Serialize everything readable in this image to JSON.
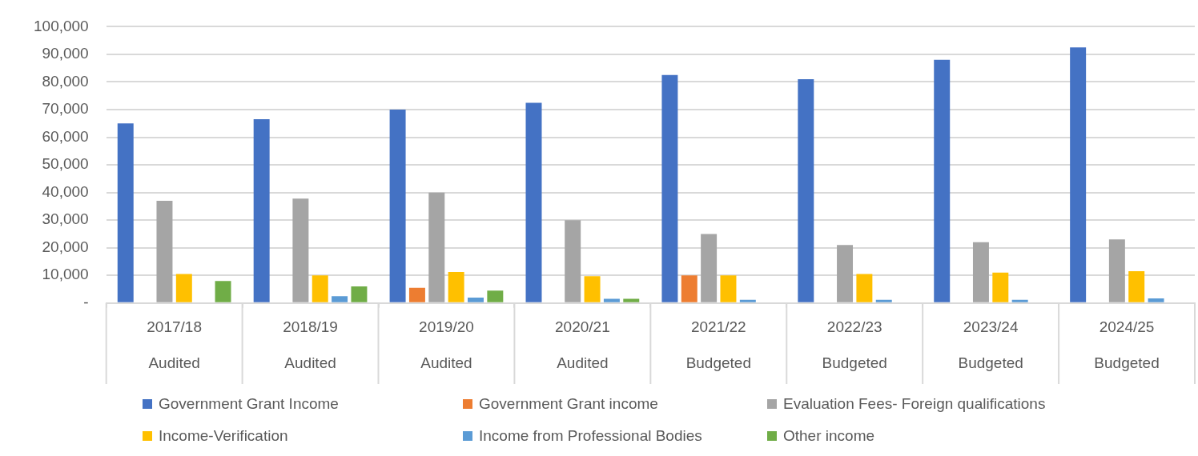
{
  "chart_data": {
    "type": "bar",
    "categories": [
      "2017/18\nAudited",
      "2018/19\nAudited",
      "2019/20\nAudited",
      "2020/21\nAudited",
      "2021/22\nBudgeted",
      "2022/23\nBudgeted",
      "2023/24\nBudgeted",
      "2024/25\nBudgeted"
    ],
    "series": [
      {
        "name": "Government Grant Income",
        "color": "#4472c4",
        "values": [
          65000,
          66500,
          70000,
          72500,
          82500,
          81000,
          88000,
          92500
        ]
      },
      {
        "name": "Government Grant income",
        "color": "#ed7d31",
        "values": [
          null,
          null,
          5500,
          null,
          10000,
          null,
          null,
          null
        ]
      },
      {
        "name": "Evaluation Fees- Foreign qualifications",
        "color": "#a5a5a5",
        "values": [
          37000,
          37800,
          40000,
          30000,
          25000,
          21000,
          22000,
          23000
        ]
      },
      {
        "name": "Income-Verification",
        "color": "#ffc000",
        "values": [
          10500,
          10000,
          11200,
          9700,
          10000,
          10500,
          11000,
          11500
        ]
      },
      {
        "name": "Income from Professional Bodies",
        "color": "#5b9bd5",
        "values": [
          null,
          2500,
          2000,
          1500,
          1200,
          1200,
          1200,
          1700
        ]
      },
      {
        "name": "Other income",
        "color": "#70ad47",
        "values": [
          8000,
          6000,
          4500,
          1500,
          null,
          null,
          null,
          null
        ]
      }
    ],
    "ylim": [
      0,
      100000
    ],
    "yticks": [
      {
        "value": 0,
        "label": "-"
      },
      {
        "value": 10000,
        "label": "10,000"
      },
      {
        "value": 20000,
        "label": "20,000"
      },
      {
        "value": 30000,
        "label": "30,000"
      },
      {
        "value": 40000,
        "label": "40,000"
      },
      {
        "value": 50000,
        "label": "50,000"
      },
      {
        "value": 60000,
        "label": "60,000"
      },
      {
        "value": 70000,
        "label": "70,000"
      },
      {
        "value": 80000,
        "label": "80,000"
      },
      {
        "value": 90000,
        "label": "90,000"
      },
      {
        "value": 100000,
        "label": "100,000"
      }
    ],
    "grid": "y",
    "legend": "bottom"
  }
}
